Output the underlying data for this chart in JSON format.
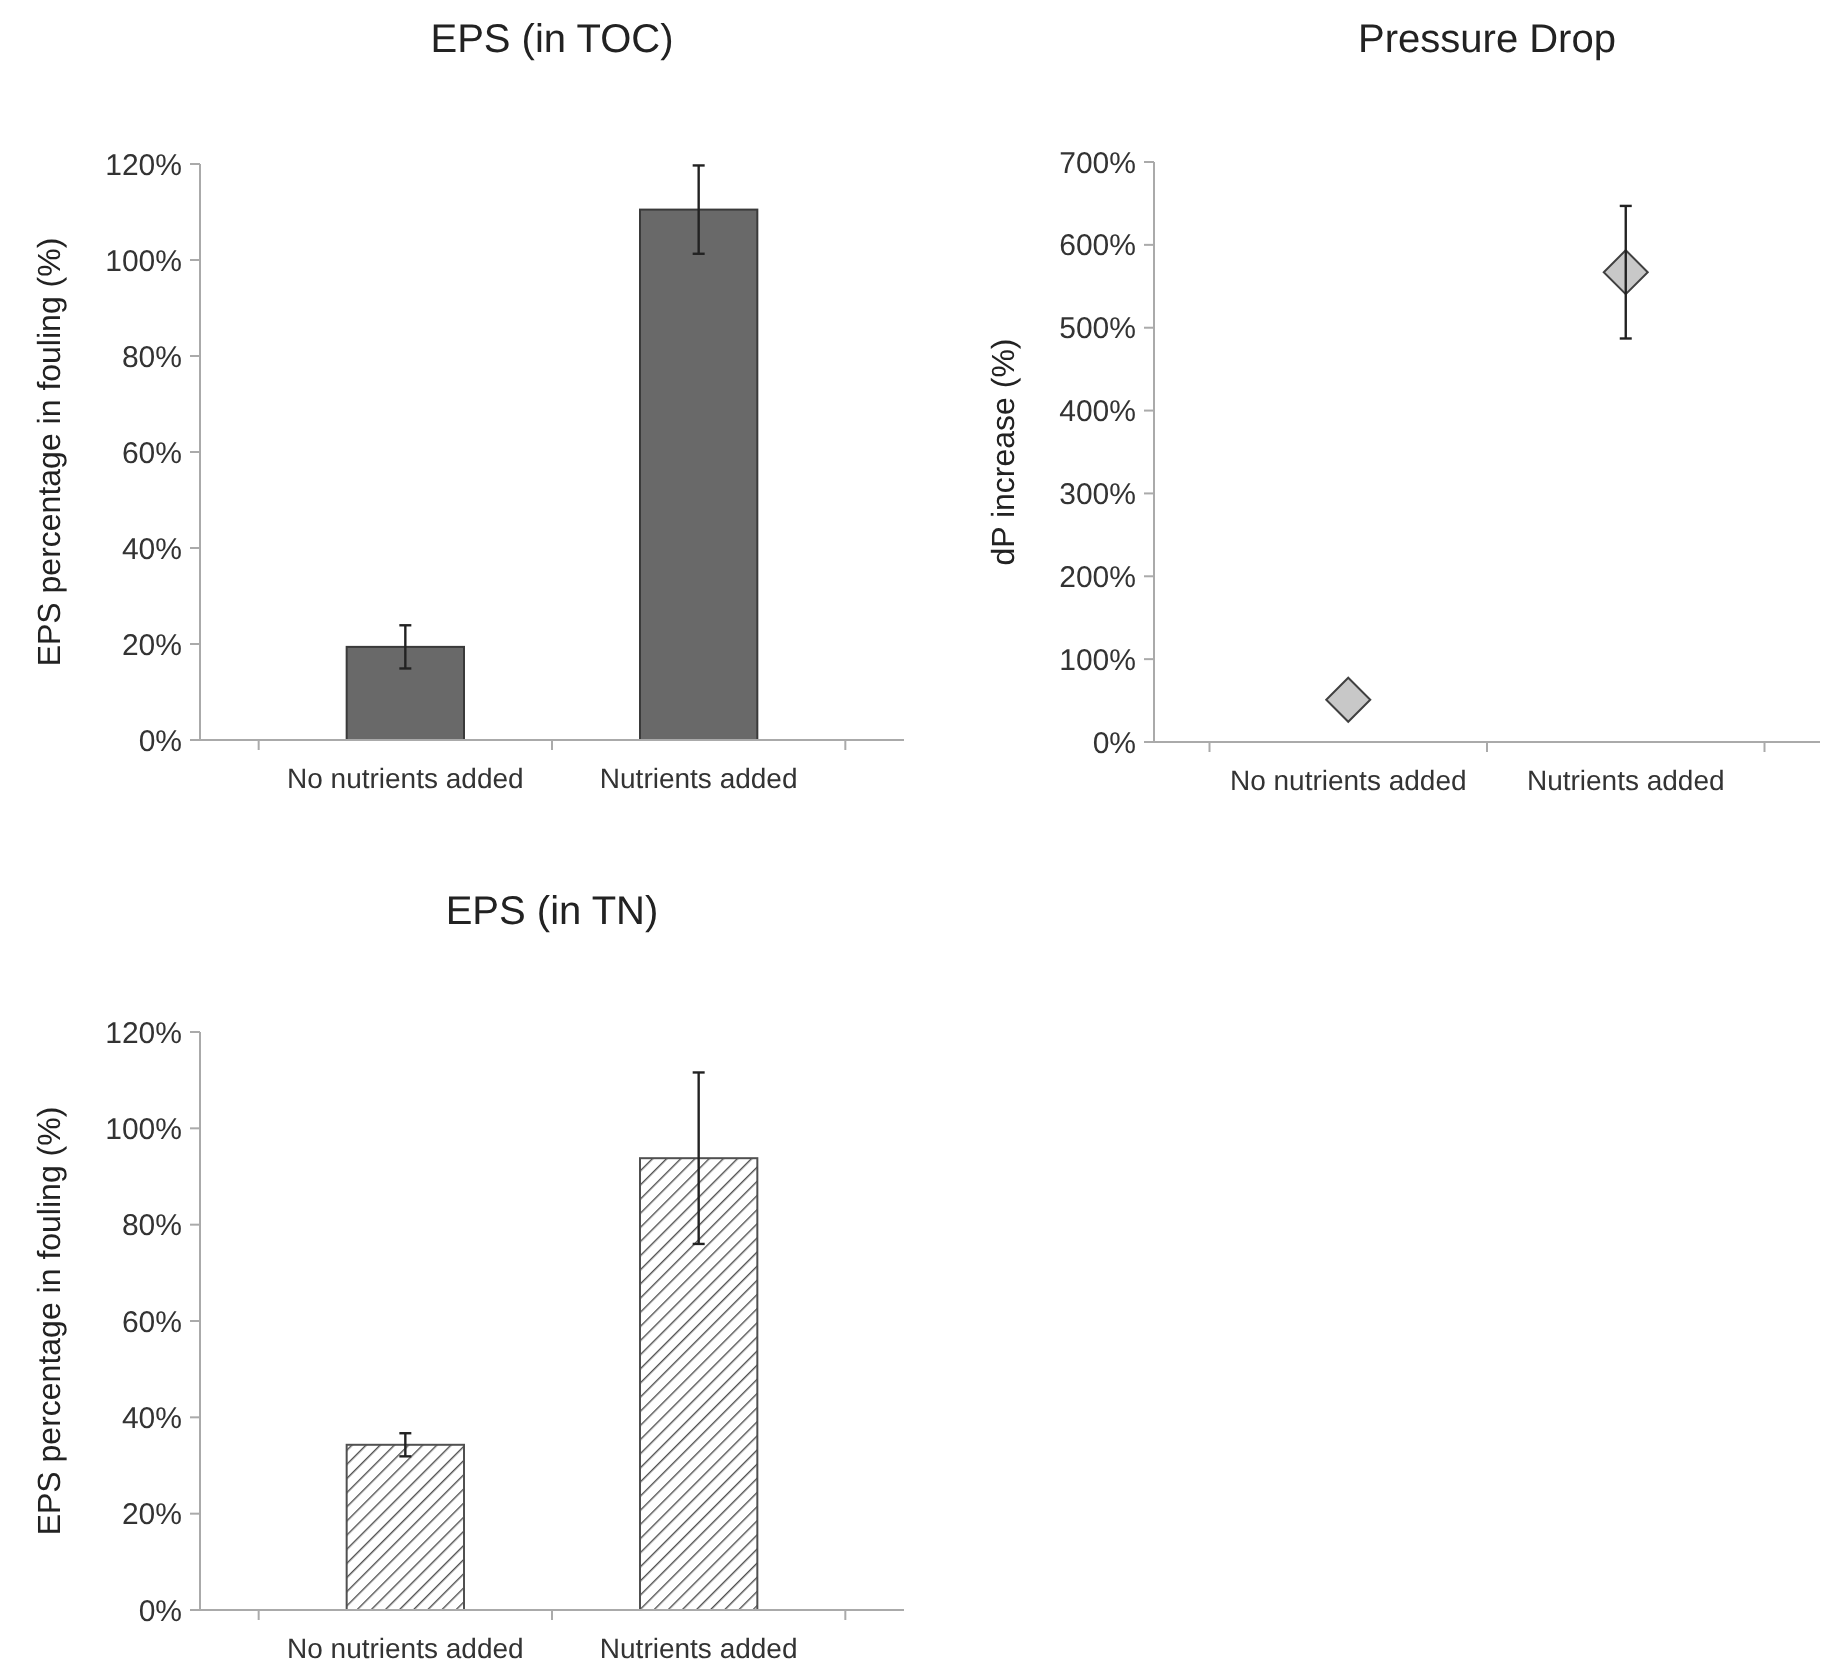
{
  "chart_data": [
    {
      "type": "bar",
      "title": "EPS (in TOC)",
      "ylabel": "EPS percentage in fouling (%)",
      "categories": [
        "No nutrients added",
        "Nutrients added"
      ],
      "values": [
        19.4,
        110.5
      ],
      "errors": [
        4.5,
        9.2
      ],
      "color": "#696969",
      "ylim": [
        0,
        120
      ],
      "yticks": [
        {
          "value": 0,
          "label": "0%"
        },
        {
          "value": 20,
          "label": "20%"
        },
        {
          "value": 40,
          "label": "40%"
        },
        {
          "value": 60,
          "label": "60%"
        },
        {
          "value": 80,
          "label": "80%"
        },
        {
          "value": 100,
          "label": "100%"
        },
        {
          "value": 120,
          "label": "120%"
        }
      ],
      "grid": false
    },
    {
      "type": "scatter",
      "title": "Pressure Drop",
      "ylabel": "dP increase (%)",
      "categories": [
        "No nutrients added",
        "Nutrients added"
      ],
      "values": [
        51,
        567
      ],
      "errors": [
        null,
        80
      ],
      "color": "#c8c8c8",
      "marker": "diamond",
      "ylim": [
        0,
        700
      ],
      "yticks": [
        {
          "value": 0,
          "label": "0%"
        },
        {
          "value": 100,
          "label": "100%"
        },
        {
          "value": 200,
          "label": "200%"
        },
        {
          "value": 300,
          "label": "300%"
        },
        {
          "value": 400,
          "label": "400%"
        },
        {
          "value": 500,
          "label": "500%"
        },
        {
          "value": 600,
          "label": "600%"
        },
        {
          "value": 700,
          "label": "700%"
        }
      ],
      "grid": false
    },
    {
      "type": "bar",
      "title": "EPS (in TN)",
      "ylabel": "EPS percentage in fouling (%)",
      "categories": [
        "No nutrients added",
        "Nutrients added"
      ],
      "values": [
        34.3,
        93.8
      ],
      "errors": [
        2.4,
        17.8
      ],
      "color": "#505050",
      "ylim": [
        0,
        120
      ],
      "yticks": [
        {
          "value": 0,
          "label": "0%"
        },
        {
          "value": 20,
          "label": "20%"
        },
        {
          "value": 40,
          "label": "40%"
        },
        {
          "value": 60,
          "label": "60%"
        },
        {
          "value": 80,
          "label": "80%"
        },
        {
          "value": 100,
          "label": "100%"
        },
        {
          "value": 120,
          "label": "120%"
        }
      ],
      "grid": false
    }
  ]
}
